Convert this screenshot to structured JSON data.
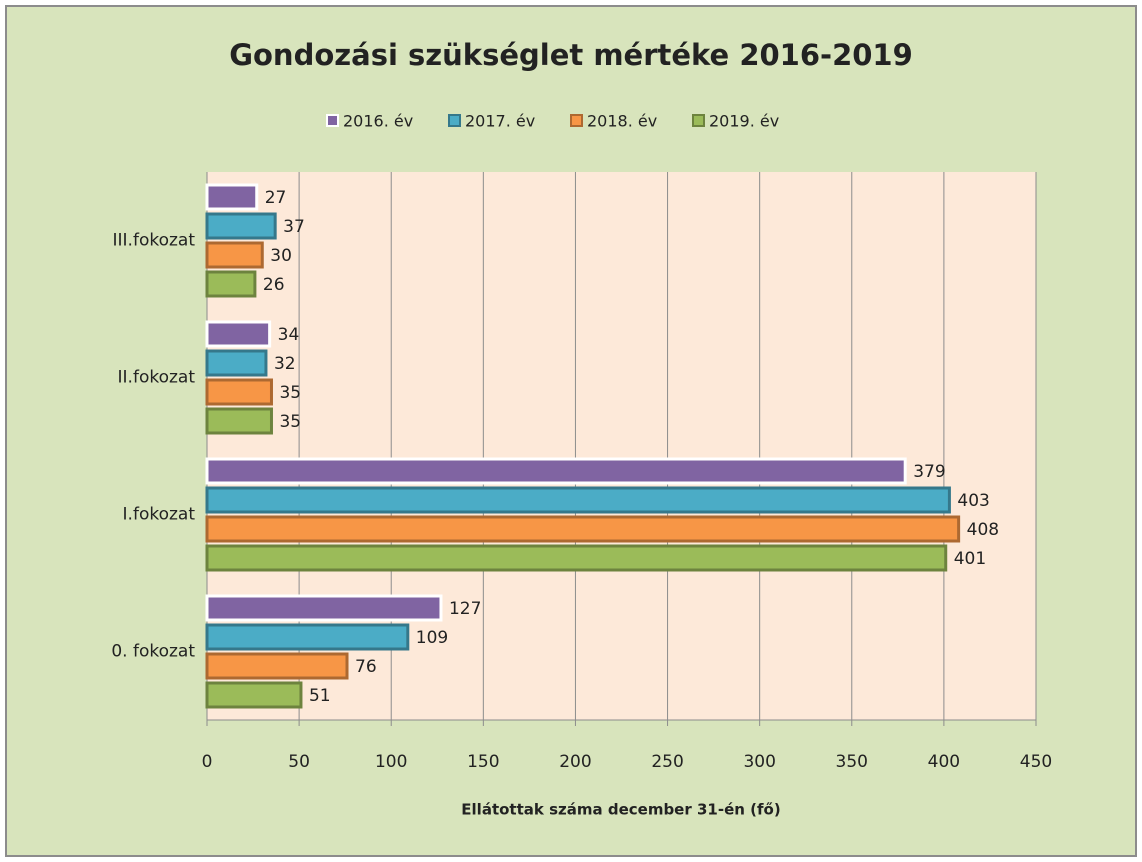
{
  "chart_data": {
    "type": "bar",
    "orientation": "horizontal",
    "title": "Gondozási szükséglet mértéke 2016-2019",
    "x_label": "Ellátottak száma december 31-én (fő)",
    "categories": [
      "0. fokozat",
      "I.fokozat",
      "II.fokozat",
      "III.fokozat"
    ],
    "series": [
      {
        "name": "2016. év",
        "color": "#8064a2",
        "values": [
          127,
          379,
          34,
          27
        ]
      },
      {
        "name": "2017. év",
        "color": "#4bacc6",
        "values": [
          109,
          403,
          32,
          37
        ]
      },
      {
        "name": "2018. év",
        "color": "#f79646",
        "values": [
          76,
          408,
          35,
          30
        ]
      },
      {
        "name": "2019. év",
        "color": "#9bbb59",
        "values": [
          51,
          401,
          35,
          26
        ]
      }
    ],
    "xlim": [
      0,
      450
    ],
    "xticks": [
      0,
      50,
      100,
      150,
      200,
      250,
      300,
      350,
      400,
      450
    ],
    "grid": true,
    "legend": "top"
  }
}
